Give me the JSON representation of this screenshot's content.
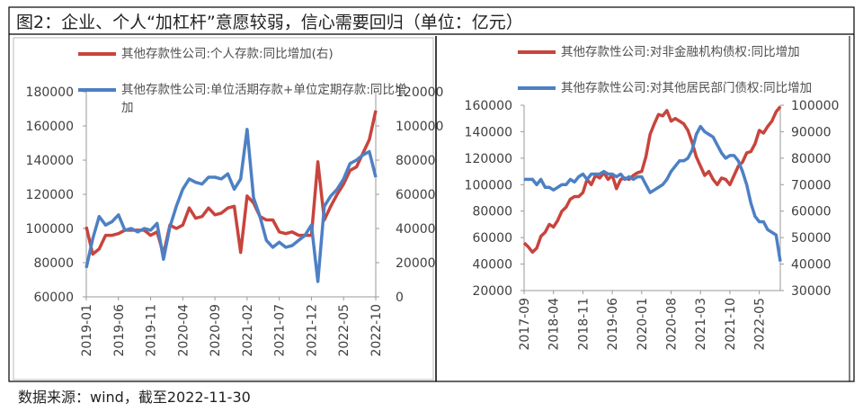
{
  "title": "图2：企业、个人“加杠杆”意愿较弱，信心需要回归（单位：亿元）",
  "source": "数据来源：wind，截至2022-11-30",
  "chart_data": [
    {
      "type": "line",
      "categories": [
        "2019-01",
        null,
        null,
        null,
        null,
        "2019-06",
        null,
        null,
        null,
        null,
        "2019-11",
        null,
        null,
        null,
        null,
        "2020-04",
        null,
        null,
        null,
        null,
        "2020-09",
        null,
        null,
        null,
        null,
        "2021-02",
        null,
        null,
        null,
        null,
        "2021-07",
        null,
        null,
        null,
        null,
        "2021-12",
        null,
        null,
        null,
        null,
        "2022-05",
        null,
        null,
        null,
        null,
        "2022-10"
      ],
      "series": [
        {
          "name": "其他存款性公司:个人存款:同比增加(右)",
          "color": "#c8443c",
          "axis": "y2",
          "values": [
            41000,
            25000,
            28000,
            36000,
            36000,
            37000,
            39000,
            39000,
            39000,
            39000,
            36000,
            38000,
            25000,
            42000,
            40000,
            42000,
            52000,
            46000,
            47000,
            52000,
            48000,
            49000,
            52000,
            53000,
            26000,
            59000,
            55000,
            47000,
            45000,
            45000,
            38000,
            37000,
            38000,
            36000,
            36000,
            36000,
            79000,
            45000,
            53000,
            60000,
            66000,
            74000,
            76000,
            84000,
            92000,
            109000
          ]
        },
        {
          "name": "其他存款性公司:单位活期存款+单位定期存款:同比增加",
          "color": "#4d80c4",
          "values": [
            77000,
            94000,
            107000,
            102000,
            104000,
            108000,
            99000,
            100000,
            98000,
            100000,
            99000,
            103000,
            82000,
            101000,
            113000,
            123000,
            129000,
            127000,
            126000,
            130000,
            130000,
            129000,
            132000,
            123000,
            129000,
            158000,
            118000,
            107000,
            93000,
            89000,
            92000,
            89000,
            90000,
            93000,
            96000,
            102000,
            69000,
            113000,
            119000,
            123000,
            129000,
            138000,
            140000,
            143000,
            145000,
            130000
          ]
        }
      ],
      "ylim": [
        60000,
        180000
      ],
      "yticks": [
        60000,
        80000,
        100000,
        120000,
        140000,
        160000,
        180000
      ],
      "y2lim": [
        0,
        120000
      ],
      "y2ticks": [
        0,
        20000,
        40000,
        60000,
        80000,
        100000,
        120000
      ]
    },
    {
      "type": "line",
      "categories": [
        "2017-09",
        null,
        null,
        null,
        null,
        null,
        null,
        "2018-04",
        null,
        null,
        null,
        null,
        null,
        null,
        "2018-11",
        null,
        null,
        null,
        null,
        null,
        null,
        "2019-06",
        null,
        null,
        null,
        null,
        null,
        null,
        "2020-01",
        null,
        null,
        null,
        null,
        null,
        null,
        "2020-08",
        null,
        null,
        null,
        null,
        null,
        null,
        "2021-03",
        null,
        null,
        null,
        null,
        null,
        null,
        "2021-10",
        null,
        null,
        null,
        null,
        null,
        null,
        "2022-05",
        null,
        null,
        null,
        null,
        null
      ],
      "series": [
        {
          "name": "其他存款性公司:对非金融机构债权:同比增加",
          "color": "#c8443c",
          "values": [
            56000,
            53000,
            49000,
            52000,
            61000,
            64000,
            70000,
            68000,
            73000,
            80000,
            83000,
            89000,
            91000,
            91000,
            94000,
            104000,
            100000,
            107000,
            105000,
            109000,
            104000,
            107000,
            97000,
            104000,
            105000,
            104000,
            107000,
            109000,
            110000,
            121000,
            138000,
            146000,
            153000,
            152000,
            156000,
            148000,
            150000,
            148000,
            146000,
            141000,
            132000,
            121000,
            114000,
            107000,
            110000,
            104000,
            100000,
            105000,
            104000,
            100000,
            107000,
            114000,
            117000,
            124000,
            125000,
            131000,
            141000,
            139000,
            144000,
            148000,
            155000,
            159000
          ]
        },
        {
          "name": "其他存款性公司:对其他居民部门债权:同比增加",
          "color": "#4d80c4",
          "axis": "y2",
          "values": [
            72000,
            72000,
            72000,
            70000,
            72000,
            69000,
            69000,
            68000,
            69000,
            70000,
            70000,
            72000,
            71000,
            73000,
            74000,
            72000,
            74000,
            74000,
            74000,
            75000,
            74000,
            74000,
            73000,
            74000,
            72000,
            73000,
            72000,
            73000,
            73000,
            70000,
            67000,
            68000,
            69000,
            70000,
            72000,
            75000,
            77000,
            79000,
            79000,
            80000,
            83000,
            89000,
            92000,
            90000,
            89000,
            88000,
            85000,
            82000,
            80000,
            81000,
            81000,
            79000,
            75000,
            70000,
            63000,
            58000,
            56000,
            56000,
            53000,
            52000,
            51000,
            41000
          ]
        }
      ],
      "ylim": [
        20000,
        160000
      ],
      "yticks": [
        20000,
        40000,
        60000,
        80000,
        100000,
        120000,
        140000,
        160000
      ],
      "y2lim": [
        30000,
        100000
      ],
      "y2ticks": [
        30000,
        40000,
        50000,
        60000,
        70000,
        80000,
        90000,
        100000
      ]
    }
  ]
}
